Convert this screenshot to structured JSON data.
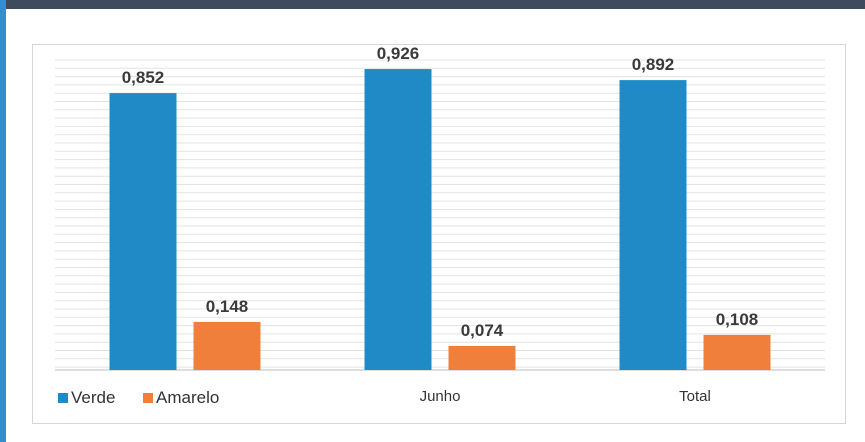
{
  "colors": {
    "verde": "#1f8ac6",
    "amarelo": "#f07f3c",
    "frame_top": "#3d4b5c",
    "frame_left": "#2f8fd1"
  },
  "chart_data": {
    "type": "bar",
    "categories": [
      "",
      "Junho",
      "Total"
    ],
    "series": [
      {
        "name": "Verde",
        "values": [
          0.852,
          0.926,
          0.892
        ],
        "labels": [
          "0,852",
          "0,926",
          "0,892"
        ]
      },
      {
        "name": "Amarelo",
        "values": [
          0.148,
          0.074,
          0.108
        ],
        "labels": [
          "0,148",
          "0,074",
          "0,108"
        ]
      }
    ],
    "ylim": [
      0,
      1
    ],
    "grid": true,
    "legend": "bottom-left"
  }
}
